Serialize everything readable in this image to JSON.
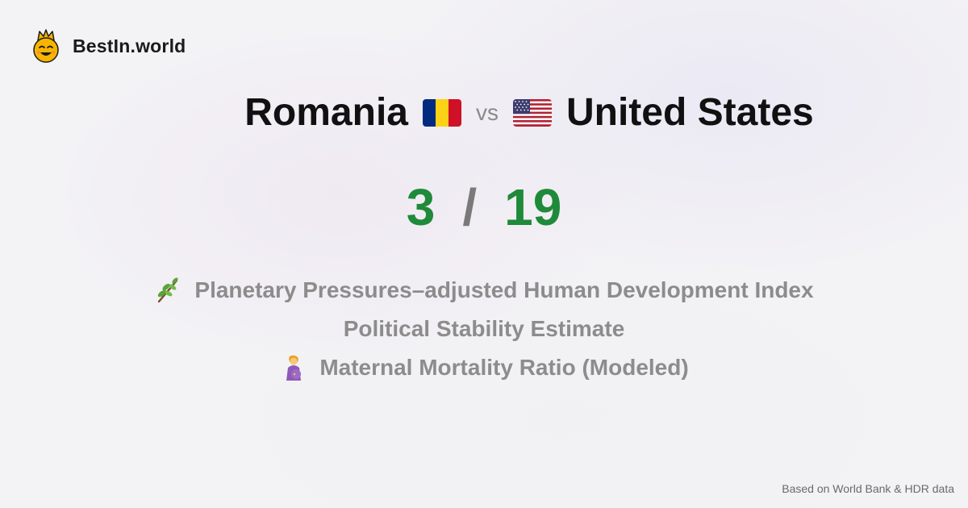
{
  "brand": {
    "name": "BestIn.world",
    "logo_icon": "smiling-face-crown-icon"
  },
  "comparison": {
    "left_country": "Romania",
    "left_flag": "romania-flag-icon",
    "vs_label": "vs",
    "right_country": "United States",
    "right_flag": "united-states-flag-icon"
  },
  "score": {
    "left": "3",
    "separator": "/",
    "right": "19"
  },
  "metrics": [
    {
      "icon": "herb-branch-icon",
      "label": "Planetary Pressures–adjusted Human Development Index"
    },
    {
      "icon": "",
      "label": "Political Stability Estimate"
    },
    {
      "icon": "pregnant-woman-icon",
      "label": "Maternal Mortality Ratio (Modeled)"
    }
  ],
  "footer": {
    "source": "Based on World Bank & HDR data"
  },
  "colors": {
    "score_green": "#1f8a3a",
    "metric_gray": "#8c8c8c",
    "background": "#f3f2f5"
  }
}
